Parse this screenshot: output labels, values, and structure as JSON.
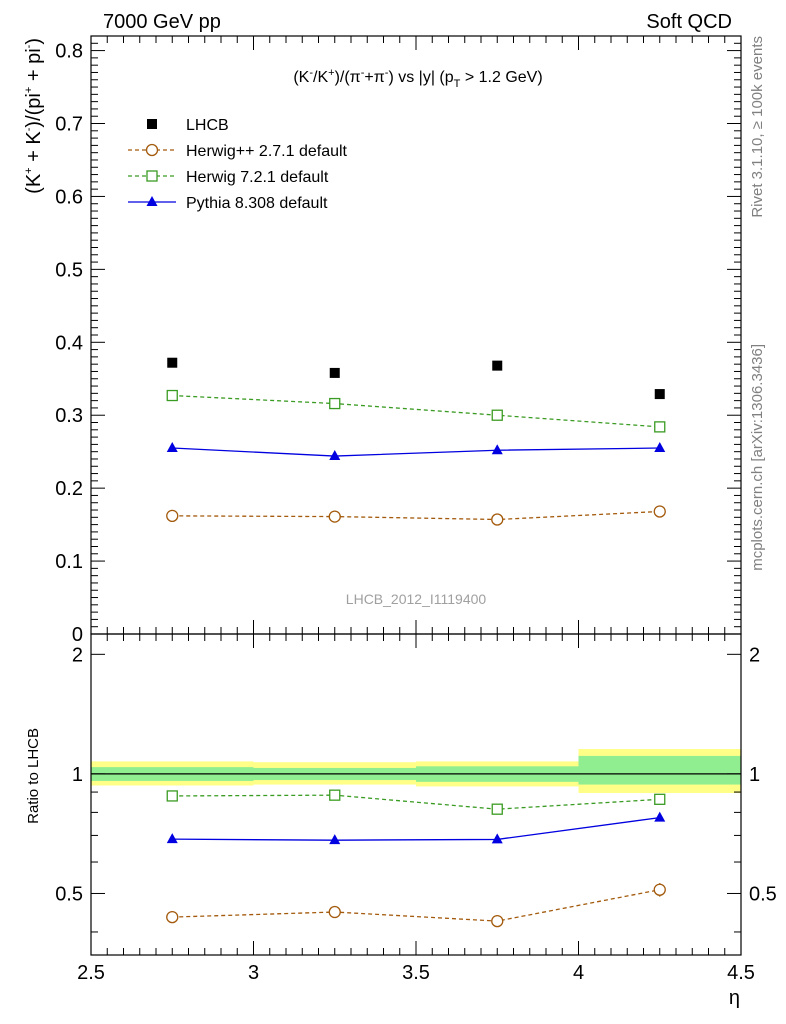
{
  "header": {
    "left": "7000 GeV pp",
    "right": "Soft QCD"
  },
  "side": {
    "top": "Rivet 3.1.10, ≥ 100k events",
    "bottom": "mcplots.cern.ch [arXiv:1306.3436]"
  },
  "chart_data": [
    {
      "type": "scatter",
      "panel": "main",
      "title": {
        "p1": "(K",
        "p1sup": "-",
        "p2": "/K",
        "p2sup": "+",
        "p3": ")/(π",
        "p3sup": "-",
        "p4": "+π",
        "p4sup": "-",
        "p5": ") vs |y| (p",
        "p5sub": "T",
        "p6": " > 1.2 GeV)"
      },
      "ylabel": {
        "p1": "(K",
        "p1sup": "+",
        "p2": " + K",
        "p2sup": "-",
        "p3": ")/(pi",
        "p3sup": "+",
        "p4": " + pi",
        "p4sup": "-",
        "p5": ")"
      },
      "watermark": "LHCB_2012_I1119400",
      "xlim": [
        2.5,
        4.5
      ],
      "ylim": [
        0,
        0.82
      ],
      "yticks": [
        {
          "v": 0,
          "label": "0"
        },
        {
          "v": 0.1,
          "label": "0.1"
        },
        {
          "v": 0.2,
          "label": "0.2"
        },
        {
          "v": 0.3,
          "label": "0.3"
        },
        {
          "v": 0.4,
          "label": "0.4"
        },
        {
          "v": 0.5,
          "label": "0.5"
        },
        {
          "v": 0.6,
          "label": "0.6"
        },
        {
          "v": 0.7,
          "label": "0.7"
        },
        {
          "v": 0.8,
          "label": "0.8"
        }
      ],
      "legend_position": "top-left",
      "series": [
        {
          "name": "LHCB",
          "marker": "filled-square",
          "line": "none",
          "color": "#000000",
          "x": [
            2.75,
            3.25,
            3.75,
            4.25
          ],
          "y": [
            0.372,
            0.358,
            0.368,
            0.329
          ]
        },
        {
          "name": "Herwig++ 2.7.1 default",
          "marker": "open-circle",
          "line": "dashed",
          "color": "#a35a0c",
          "x": [
            2.75,
            3.25,
            3.75,
            4.25
          ],
          "y": [
            0.162,
            0.161,
            0.157,
            0.168
          ]
        },
        {
          "name": "Herwig 7.2.1 default",
          "marker": "open-square",
          "line": "dashed",
          "color": "#3a9b22",
          "x": [
            2.75,
            3.25,
            3.75,
            4.25
          ],
          "y": [
            0.327,
            0.316,
            0.3,
            0.284
          ]
        },
        {
          "name": "Pythia 8.308 default",
          "marker": "filled-triangle",
          "line": "solid",
          "color": "#0000e0",
          "x": [
            2.75,
            3.25,
            3.75,
            4.25
          ],
          "y": [
            0.255,
            0.244,
            0.252,
            0.255
          ]
        }
      ]
    },
    {
      "type": "scatter",
      "panel": "ratio",
      "ylabel": "Ratio to LHCB",
      "xlabel": "η",
      "xlim": [
        2.5,
        4.5
      ],
      "ylim": [
        0.35,
        2.25
      ],
      "log_y": true,
      "xticks": [
        {
          "v": 2.5,
          "label": "2.5"
        },
        {
          "v": 3,
          "label": "3"
        },
        {
          "v": 3.5,
          "label": "3.5"
        },
        {
          "v": 4,
          "label": "4"
        },
        {
          "v": 4.5,
          "label": "4.5"
        }
      ],
      "yticks": [
        {
          "v": 0.5,
          "label": "0.5"
        },
        {
          "v": 1,
          "label": "1"
        },
        {
          "v": 2,
          "label": "2"
        }
      ],
      "bands": [
        {
          "x0": 2.5,
          "x1": 3.0,
          "inner": [
            0.96,
            1.04
          ],
          "outer": [
            0.935,
            1.075
          ]
        },
        {
          "x0": 3.0,
          "x1": 3.5,
          "inner": [
            0.965,
            1.035
          ],
          "outer": [
            0.94,
            1.07
          ]
        },
        {
          "x0": 3.5,
          "x1": 4.0,
          "inner": [
            0.955,
            1.045
          ],
          "outer": [
            0.93,
            1.075
          ]
        },
        {
          "x0": 4.0,
          "x1": 4.5,
          "inner": [
            0.94,
            1.11
          ],
          "outer": [
            0.895,
            1.155
          ]
        }
      ],
      "band_colors": {
        "inner": "#90ee90",
        "outer": "#ffff88"
      },
      "series": [
        {
          "name": "Herwig++ 2.7.1 default",
          "marker": "open-circle",
          "line": "dashed",
          "color": "#a35a0c",
          "x": [
            2.75,
            3.25,
            3.75,
            4.25
          ],
          "y": [
            0.436,
            0.449,
            0.426,
            0.511
          ],
          "err": [
            0.012,
            0.013,
            0.012,
            0.02
          ]
        },
        {
          "name": "Herwig 7.2.1 default",
          "marker": "open-square",
          "line": "dashed",
          "color": "#3a9b22",
          "x": [
            2.75,
            3.25,
            3.75,
            4.25
          ],
          "y": [
            0.88,
            0.884,
            0.815,
            0.863
          ],
          "err": [
            0,
            0,
            0,
            0
          ]
        },
        {
          "name": "Pythia 8.308 default",
          "marker": "filled-triangle",
          "line": "solid",
          "color": "#0000e0",
          "x": [
            2.75,
            3.25,
            3.75,
            4.25
          ],
          "y": [
            0.685,
            0.681,
            0.684,
            0.776
          ],
          "err": [
            0,
            0,
            0,
            0.012
          ]
        }
      ]
    }
  ]
}
